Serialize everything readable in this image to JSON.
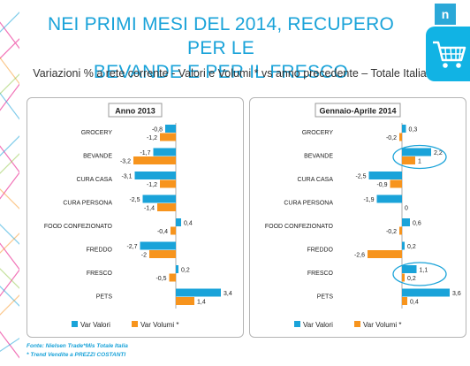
{
  "header": {
    "title_line1": "NEI PRIMI MESI DEL 2014, RECUPERO PER LE",
    "title_line2": "BEVANDE E PER IL FRESCO",
    "subtitle": "Variazioni % a rete corrente - Valori e Volumi * vs anno precedente – Totale Italia",
    "logo_letter": "n"
  },
  "icons": {
    "cart": "shopping-cart-icon",
    "logo": "nielsen-logo-icon"
  },
  "colors": {
    "valori": "#1aa3d9",
    "volumi": "#f7941d",
    "title": "#1aa3d9",
    "highlight": "#1aa3d9"
  },
  "footer": {
    "source": "Fonte: Nielsen Trade*Mis  Totale Italia",
    "note": "* Trend Vendite a PREZZI COSTANTI"
  },
  "chart_data": [
    {
      "type": "bar",
      "orientation": "horizontal",
      "title": "Anno 2013",
      "categories": [
        "GROCERY",
        "BEVANDE",
        "CURA CASA",
        "CURA PERSONA",
        "FOOD CONFEZIONATO",
        "FREDDO",
        "FRESCO",
        "PETS"
      ],
      "series": [
        {
          "name": "Var Valori",
          "values": [
            -0.8,
            -1.7,
            -3.1,
            -2.5,
            0.4,
            -2.7,
            0.2,
            3.4
          ],
          "labels": [
            "-0,8",
            "-1,7",
            "-3,1",
            "-2,5",
            "0,4",
            "-2,7",
            "0,2",
            "3,4"
          ]
        },
        {
          "name": "Var Volumi *",
          "values": [
            -1.2,
            -3.2,
            -1.2,
            -1.4,
            -0.4,
            -2,
            -0.5,
            1.4
          ],
          "labels": [
            "-1,2",
            "-3,2",
            "-1,2",
            "-1,4",
            "-0,4",
            "-2",
            "-0,5",
            "1,4"
          ]
        }
      ],
      "legend": "bottom",
      "highlighted": []
    },
    {
      "type": "bar",
      "orientation": "horizontal",
      "title": "Gennaio-Aprile 2014",
      "categories": [
        "GROCERY",
        "BEVANDE",
        "CURA CASA",
        "CURA PERSONA",
        "FOOD CONFEZIONATO",
        "FREDDO",
        "FRESCO",
        "PETS"
      ],
      "series": [
        {
          "name": "Var Valori",
          "values": [
            0.3,
            2.2,
            -2.5,
            -1.9,
            0.6,
            0.2,
            1.1,
            3.6
          ],
          "labels": [
            "0,3",
            "2,2",
            "-2,5",
            "-1,9",
            "0,6",
            "0,2",
            "1,1",
            "3,6"
          ]
        },
        {
          "name": "Var Volumi *",
          "values": [
            -0.2,
            1,
            -0.9,
            0,
            -0.2,
            -2.6,
            0.2,
            0.4
          ],
          "labels": [
            "-0,2",
            "1",
            "-0,9",
            "0",
            "-0,2",
            "-2,6",
            "0,2",
            "0,4"
          ]
        }
      ],
      "legend": "bottom",
      "highlighted": [
        "BEVANDE",
        "FRESCO"
      ]
    }
  ]
}
